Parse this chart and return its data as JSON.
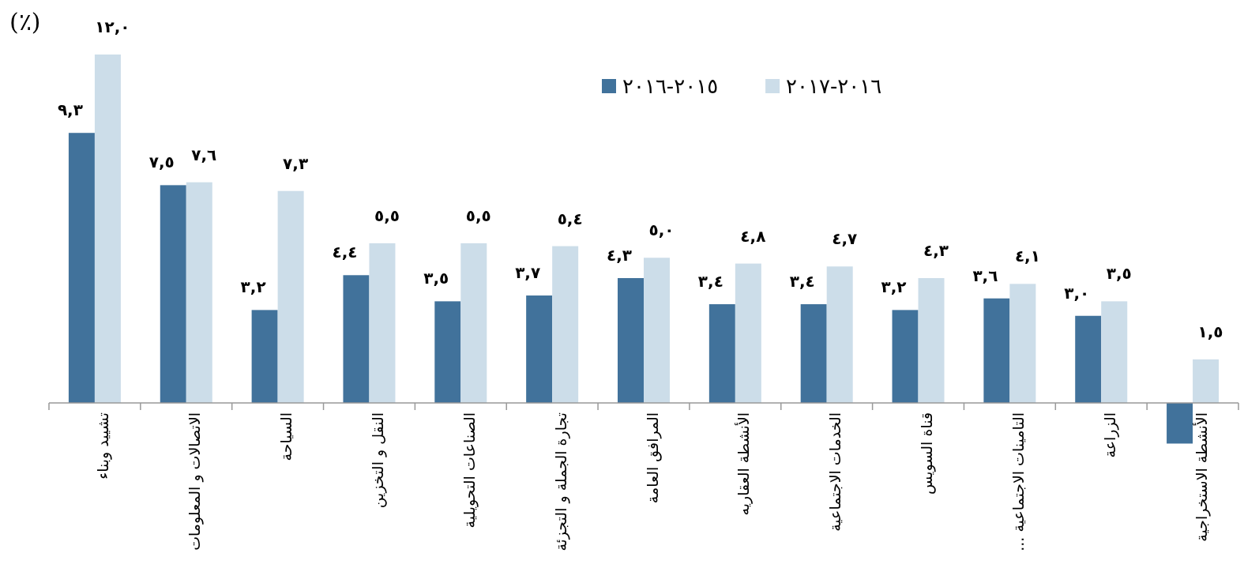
{
  "chart_data": {
    "type": "bar",
    "title": "(٪)",
    "legend": "top",
    "categories": [
      "تشييد وبناء",
      "الاتصالات و المعلومات",
      "السياحة",
      "النقل و التخزين",
      "الصناعات التحويلية",
      "تجارة الجملة و التجزئة",
      "المرافق العامة",
      "الأنشطة العقاريه",
      "الخدمات الاجتماعية",
      "قناة السويس",
      "التامينات الاجتماعية ...",
      "الزراعة",
      "الأنشطة الاستخراجية"
    ],
    "series": [
      {
        "name": "٢٠١٥-٢٠١٦",
        "color": "#41729b",
        "values": [
          9.3,
          7.5,
          3.2,
          4.4,
          3.5,
          3.7,
          4.3,
          3.4,
          3.4,
          3.2,
          3.6,
          3.0,
          -1.4
        ],
        "value_labels": [
          "٩,٣",
          "٧,٥",
          "٣,٢",
          "٤,٤",
          "٣,٥",
          "٣,٧",
          "٤,٣",
          "٣,٤",
          "٣,٤",
          "٣,٢",
          "٣,٦",
          "٣,٠",
          null
        ]
      },
      {
        "name": "٢٠١٦-٢٠١٧",
        "color": "#ccdde9",
        "values": [
          12.0,
          7.6,
          7.3,
          5.5,
          5.5,
          5.4,
          5.0,
          4.8,
          4.7,
          4.3,
          4.1,
          3.5,
          1.5
        ],
        "value_labels": [
          "١٢,٠",
          "٧,٦",
          "٧,٣",
          "٥,٥",
          "٥,٥",
          "٥,٤",
          "٥,٠",
          "٤,٨",
          "٤,٧",
          "٤,٣",
          "٤,١",
          "٣,٥",
          "١,٥"
        ]
      }
    ]
  }
}
